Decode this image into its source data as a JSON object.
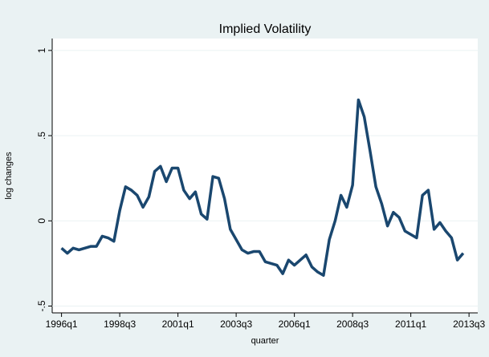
{
  "chart_data": {
    "type": "line",
    "title": "Implied Volatility",
    "x_label": "quarter",
    "y_label": "log changes",
    "x": [
      144,
      145,
      146,
      147,
      148,
      149,
      150,
      151,
      152,
      153,
      154,
      155,
      156,
      157,
      158,
      159,
      160,
      161,
      162,
      163,
      164,
      165,
      166,
      167,
      168,
      169,
      170,
      171,
      172,
      173,
      174,
      175,
      176,
      177,
      178,
      179,
      180,
      181,
      182,
      183,
      184,
      185,
      186,
      187,
      188,
      189,
      190,
      191,
      192,
      193,
      194,
      195,
      196,
      197,
      198,
      199,
      200,
      201,
      202,
      203,
      204,
      205,
      206,
      207,
      208,
      209,
      210,
      211,
      212,
      213
    ],
    "values": [
      -0.16,
      -0.19,
      -0.16,
      -0.17,
      -0.16,
      -0.15,
      -0.15,
      -0.09,
      -0.1,
      -0.12,
      0.06,
      0.2,
      0.18,
      0.15,
      0.08,
      0.14,
      0.29,
      0.32,
      0.23,
      0.31,
      0.31,
      0.18,
      0.13,
      0.17,
      0.04,
      0.01,
      0.26,
      0.25,
      0.13,
      -0.05,
      -0.11,
      -0.17,
      -0.19,
      -0.18,
      -0.18,
      -0.24,
      -0.25,
      -0.26,
      -0.31,
      -0.23,
      -0.26,
      -0.23,
      -0.2,
      -0.27,
      -0.3,
      -0.32,
      -0.11,
      0,
      0.15,
      0.08,
      0.21,
      0.71,
      0.61,
      0.41,
      0.2,
      0.1,
      -0.03,
      0.05,
      0.02,
      -0.06,
      -0.08,
      -0.1,
      0.15,
      0.18,
      -0.05,
      -0.01,
      -0.06,
      -0.1,
      -0.23,
      -0.19
    ],
    "color": "#1a476f",
    "xlim": [
      142.4,
      215.5
    ],
    "ylim": [
      -0.54,
      1.07
    ],
    "xticks": [
      {
        "value": 144,
        "label": "1996q1"
      },
      {
        "value": 154,
        "label": "1998q3"
      },
      {
        "value": 164,
        "label": "2001q1"
      },
      {
        "value": 174,
        "label": "2003q3"
      },
      {
        "value": 184,
        "label": "2006q1"
      },
      {
        "value": 194,
        "label": "2008q3"
      },
      {
        "value": 204,
        "label": "2011q1"
      },
      {
        "value": 214,
        "label": "2013q3"
      }
    ],
    "yticks": [
      {
        "value": -0.5,
        "label": "-.5"
      },
      0,
      {
        "value": 0.5,
        "label": ".5"
      },
      1
    ],
    "grid": true
  }
}
